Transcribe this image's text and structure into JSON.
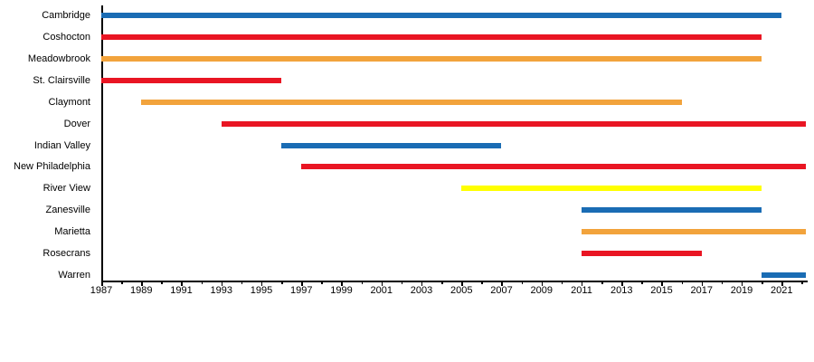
{
  "chart_data": {
    "type": "bar",
    "subtype": "gantt-timeline",
    "orientation": "horizontal",
    "title": "",
    "xlabel": "",
    "ylabel": "",
    "grid": false,
    "legend": false,
    "rows": [
      {
        "label": "Cambridge",
        "start": 1987,
        "end": 2021,
        "ongoing": false,
        "color": "blue"
      },
      {
        "label": "Coshocton",
        "start": 1987,
        "end": 2020,
        "ongoing": false,
        "color": "red"
      },
      {
        "label": "Meadowbrook",
        "start": 1987,
        "end": 2020,
        "ongoing": false,
        "color": "orange"
      },
      {
        "label": "St. Clairsville",
        "start": 1987,
        "end": 1996,
        "ongoing": false,
        "color": "red"
      },
      {
        "label": "Claymont",
        "start": 1989,
        "end": 2016,
        "ongoing": false,
        "color": "orange"
      },
      {
        "label": "Dover",
        "start": 1993,
        "end": 2022.2,
        "ongoing": true,
        "color": "red"
      },
      {
        "label": "Indian Valley",
        "start": 1996,
        "end": 2007,
        "ongoing": false,
        "color": "blue"
      },
      {
        "label": "New Philadelphia",
        "start": 1997,
        "end": 2022.2,
        "ongoing": true,
        "color": "red"
      },
      {
        "label": "River View",
        "start": 2005,
        "end": 2020,
        "ongoing": false,
        "color": "yellow"
      },
      {
        "label": "Zanesville",
        "start": 2011,
        "end": 2020,
        "ongoing": false,
        "color": "blue"
      },
      {
        "label": "Marietta",
        "start": 2011,
        "end": 2022.2,
        "ongoing": true,
        "color": "orange"
      },
      {
        "label": "Rosecrans",
        "start": 2011,
        "end": 2017,
        "ongoing": false,
        "color": "red"
      },
      {
        "label": "Warren",
        "start": 2020,
        "end": 2022.2,
        "ongoing": true,
        "color": "blue"
      }
    ],
    "x_axis": {
      "min": 1987,
      "max": 2022.3,
      "minor_tick_step": 1,
      "last_minor_tick": 2022,
      "labels": [
        1987,
        1989,
        1991,
        1993,
        1995,
        1997,
        1999,
        2001,
        2003,
        2005,
        2007,
        2009,
        2011,
        2013,
        2015,
        2017,
        2019,
        2021
      ]
    },
    "colors": {
      "blue": "#1a6cb4",
      "red": "#e91523",
      "orange": "#f2a33c",
      "yellow": "#ffff00"
    }
  }
}
